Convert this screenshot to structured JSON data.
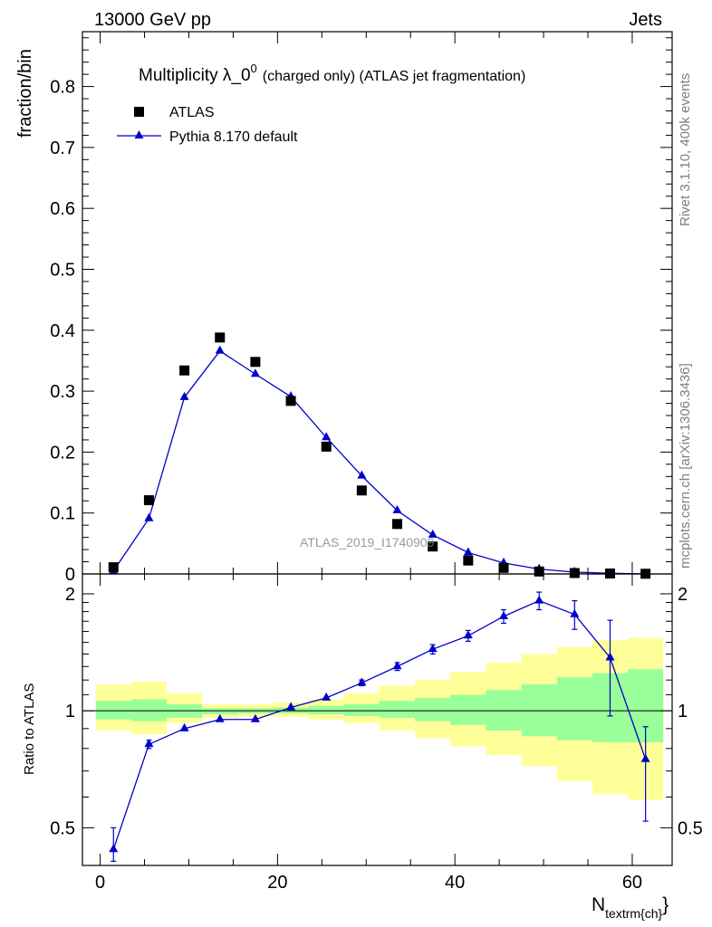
{
  "header": {
    "left": "13000 GeV pp",
    "right": "Jets"
  },
  "side_labels": {
    "rivet": "Rivet 3.1.10,  400k events",
    "source": "mcplots.cern.ch [arXiv:1306.3436]"
  },
  "watermark": "ATLAS_2019_I1740909",
  "chart_data": [
    {
      "panel": "main",
      "type": "scatter",
      "title_main": "Multiplicity λ_0",
      "title_sup": "0",
      "title_rest": "(charged only) (ATLAS jet fragmentation)",
      "ylabel": "fraction/bin",
      "xlabel_main": "N",
      "xlabel_sub": "textrm{ch}",
      "xlim": [
        -2,
        64.5
      ],
      "ylim": [
        0,
        0.89
      ],
      "y_ticks": [
        0,
        0.1,
        0.2,
        0.3,
        0.4,
        0.5,
        0.6,
        0.7,
        0.8
      ],
      "y_tick_labels": [
        "0",
        "0.1",
        "0.2",
        "0.3",
        "0.4",
        "0.5",
        "0.6",
        "0.7",
        "0.8"
      ],
      "x_ticks": [
        0,
        20,
        40,
        60
      ],
      "x_tick_labels": [
        "0",
        "20",
        "40",
        "60"
      ],
      "legend_position": "top-left",
      "series": [
        {
          "name": "ATLAS",
          "marker": "square",
          "color": "#000000",
          "x": [
            1.5,
            5.5,
            9.5,
            13.5,
            17.5,
            21.5,
            25.5,
            29.5,
            33.5,
            37.5,
            41.5,
            45.5,
            49.5,
            53.5,
            57.5,
            61.5
          ],
          "y": [
            0.011,
            0.121,
            0.334,
            0.388,
            0.348,
            0.284,
            0.209,
            0.137,
            0.082,
            0.045,
            0.022,
            0.01,
            0.004,
            0.0015,
            0.0007,
            0.0003
          ]
        },
        {
          "name": "Pythia 8.170 default",
          "marker": "triangle",
          "color": "#0000cc",
          "x": [
            1.5,
            5.5,
            9.5,
            13.5,
            17.5,
            21.5,
            25.5,
            29.5,
            33.5,
            37.5,
            41.5,
            45.5,
            49.5,
            53.5,
            57.5,
            61.5
          ],
          "y": [
            0.005,
            0.091,
            0.29,
            0.366,
            0.328,
            0.291,
            0.224,
            0.161,
            0.104,
            0.064,
            0.035,
            0.018,
            0.008,
            0.003,
            0.001,
            0.0002
          ]
        }
      ]
    },
    {
      "panel": "ratio",
      "type": "line",
      "ylabel": "Ratio to ATLAS",
      "ylim": [
        0.4,
        2.25
      ],
      "y_ticks": [
        0.5,
        1,
        2
      ],
      "y_tick_labels": [
        "0.5",
        "1",
        "2"
      ],
      "bin_edges": [
        -0.5,
        3.5,
        7.5,
        11.5,
        15.5,
        19.5,
        23.5,
        27.5,
        31.5,
        35.5,
        39.5,
        43.5,
        47.5,
        51.5,
        55.5,
        59.5,
        63.5
      ],
      "band_inner": {
        "color": "#99ff99",
        "low": [
          0.95,
          0.94,
          0.96,
          0.98,
          0.985,
          0.985,
          0.98,
          0.97,
          0.96,
          0.94,
          0.92,
          0.89,
          0.86,
          0.84,
          0.83,
          0.83
        ],
        "high": [
          1.06,
          1.07,
          1.04,
          1.015,
          1.015,
          1.02,
          1.03,
          1.04,
          1.06,
          1.08,
          1.1,
          1.13,
          1.17,
          1.22,
          1.25,
          1.28
        ]
      },
      "band_outer": {
        "color": "#ffff99",
        "low": [
          0.89,
          0.87,
          0.93,
          0.96,
          0.965,
          0.965,
          0.95,
          0.93,
          0.89,
          0.85,
          0.81,
          0.77,
          0.72,
          0.66,
          0.61,
          0.59
        ],
        "high": [
          1.17,
          1.19,
          1.11,
          1.04,
          1.04,
          1.05,
          1.07,
          1.11,
          1.16,
          1.2,
          1.26,
          1.33,
          1.4,
          1.46,
          1.52,
          1.54
        ]
      },
      "reference_line": 1,
      "series": [
        {
          "name": "Pythia 8.170 default",
          "color": "#0000cc",
          "x": [
            1.5,
            5.5,
            9.5,
            13.5,
            17.5,
            21.5,
            25.5,
            29.5,
            33.5,
            37.5,
            41.5,
            45.5,
            49.5,
            53.5,
            57.5,
            61.5
          ],
          "y": [
            0.44,
            0.82,
            0.9,
            0.95,
            0.95,
            1.02,
            1.08,
            1.18,
            1.3,
            1.44,
            1.56,
            1.75,
            1.92,
            1.77,
            1.37,
            0.75
          ],
          "err_low": [
            0.03,
            0.02,
            0.01,
            0.01,
            0.01,
            0.01,
            0.01,
            0.02,
            0.03,
            0.04,
            0.05,
            0.07,
            0.1,
            0.15,
            0.4,
            0.23
          ],
          "err_high": [
            0.06,
            0.02,
            0.01,
            0.01,
            0.01,
            0.01,
            0.01,
            0.02,
            0.03,
            0.04,
            0.05,
            0.07,
            0.1,
            0.15,
            0.34,
            0.16
          ]
        }
      ]
    }
  ]
}
